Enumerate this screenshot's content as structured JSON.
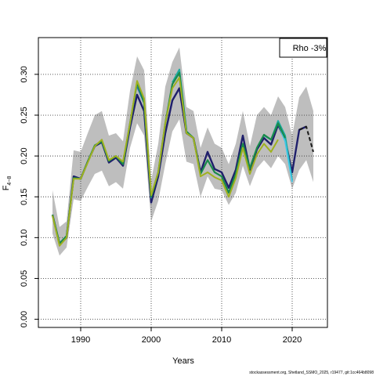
{
  "chart_data": {
    "type": "line",
    "xlabel": "Years",
    "ylabel": "F",
    "ylabel_subscript": "4−8",
    "xlim": [
      1984,
      2025
    ],
    "ylim": [
      -0.01,
      0.345
    ],
    "xticks": [
      1990,
      2000,
      2010,
      2020
    ],
    "yticks": [
      0.0,
      0.05,
      0.1,
      0.15,
      0.2,
      0.25,
      0.3
    ],
    "ytick_labels": [
      "0.00",
      "0.05",
      "0.10",
      "0.15",
      "0.20",
      "0.25",
      "0.30"
    ],
    "grid": true,
    "legend_text": "Rho -3%",
    "legend_position": "top-right",
    "band": {
      "color": "#bebebe",
      "x": [
        1986,
        1987,
        1988,
        1989,
        1990,
        1991,
        1992,
        1993,
        1994,
        1995,
        1996,
        1997,
        1998,
        1999,
        2000,
        2001,
        2002,
        2003,
        2004,
        2005,
        2006,
        2007,
        2008,
        2009,
        2010,
        2011,
        2012,
        2013,
        2014,
        2015,
        2016,
        2017,
        2018,
        2019,
        2020,
        2021,
        2022,
        2023
      ],
      "upper": [
        0.158,
        0.113,
        0.12,
        0.207,
        0.205,
        0.228,
        0.25,
        0.255,
        0.225,
        0.228,
        0.218,
        0.28,
        0.322,
        0.305,
        0.17,
        0.215,
        0.285,
        0.315,
        0.333,
        0.26,
        0.255,
        0.21,
        0.235,
        0.215,
        0.21,
        0.19,
        0.215,
        0.255,
        0.212,
        0.25,
        0.26,
        0.25,
        0.273,
        0.26,
        0.225,
        0.272,
        0.285,
        0.255
      ],
      "lower": [
        0.105,
        0.078,
        0.088,
        0.147,
        0.145,
        0.162,
        0.178,
        0.182,
        0.163,
        0.168,
        0.16,
        0.21,
        0.24,
        0.225,
        0.12,
        0.145,
        0.19,
        0.23,
        0.245,
        0.193,
        0.19,
        0.15,
        0.175,
        0.16,
        0.158,
        0.14,
        0.155,
        0.188,
        0.163,
        0.185,
        0.195,
        0.185,
        0.2,
        0.19,
        0.16,
        0.183,
        0.195,
        0.168
      ]
    },
    "series": [
      {
        "color": "#1f1f6b",
        "width": 2.4,
        "dash": "",
        "x": [
          1986,
          1987,
          1988,
          1989,
          1990,
          1991,
          1992,
          1993,
          1994,
          1995,
          1996,
          1997,
          1998,
          1999,
          2000,
          2001,
          2002,
          2003,
          2004,
          2005,
          2006,
          2007,
          2008,
          2009,
          2010,
          2011,
          2012,
          2013,
          2014,
          2015,
          2016,
          2017,
          2018,
          2019
        ],
        "values": [
          0.128,
          0.092,
          0.1,
          0.175,
          0.172,
          0.193,
          0.212,
          0.217,
          0.192,
          0.198,
          0.188,
          0.235,
          0.275,
          0.255,
          0.143,
          0.175,
          0.228,
          0.268,
          0.283,
          0.228,
          0.222,
          0.18,
          0.205,
          0.184,
          0.18,
          0.161,
          0.183,
          0.225,
          0.183,
          0.208,
          0.222,
          0.214,
          0.238,
          0.22
        ]
      },
      {
        "color": "#1f1f6b",
        "width": 2.0,
        "dash": "5,3",
        "x": [
          2002,
          2003,
          2004,
          2005
        ],
        "values": [
          0.228,
          0.268,
          0.283,
          0.228
        ]
      },
      {
        "color": "#1f1f6b",
        "width": 2.4,
        "dash": "",
        "x": [
          2019,
          2020,
          2021,
          2022
        ],
        "values": [
          0.22,
          0.18,
          0.232,
          0.236
        ]
      },
      {
        "color": "#1a1a1a",
        "width": 2.0,
        "dash": "5,3",
        "x": [
          2021,
          2022,
          2023
        ],
        "values": [
          0.232,
          0.236,
          0.205
        ]
      },
      {
        "color": "#2b6fb0",
        "width": 2.0,
        "dash": "",
        "x": [
          1998,
          1999,
          2000
        ],
        "values": [
          0.285,
          0.265,
          0.148
        ]
      },
      {
        "color": "#1ca9a0",
        "width": 2.0,
        "dash": "",
        "x": [
          2003,
          2004,
          2005
        ],
        "values": [
          0.29,
          0.306,
          0.232
        ]
      },
      {
        "color": "#1ca9a0",
        "width": 2.0,
        "dash": "",
        "x": [
          2016,
          2017,
          2018,
          2019,
          2020
        ],
        "values": [
          0.225,
          0.22,
          0.243,
          0.225,
          0.17
        ]
      },
      {
        "color": "#3ec8e8",
        "width": 1.8,
        "dash": "",
        "x": [
          2018,
          2019,
          2020
        ],
        "values": [
          0.24,
          0.218,
          0.168
        ]
      },
      {
        "color": "#1a8a4a",
        "width": 2.2,
        "dash": "",
        "x": [
          1986,
          1987,
          1988,
          1989,
          1990,
          1991,
          1992,
          1993,
          1994,
          1995,
          1996,
          1997,
          1998,
          1999,
          2000,
          2001,
          2002,
          2003,
          2004,
          2005,
          2006,
          2007,
          2008,
          2009,
          2010,
          2011,
          2012,
          2013,
          2014,
          2015,
          2016,
          2017,
          2018,
          2019
        ],
        "values": [
          0.128,
          0.093,
          0.102,
          0.173,
          0.172,
          0.193,
          0.213,
          0.218,
          0.194,
          0.2,
          0.19,
          0.24,
          0.29,
          0.265,
          0.15,
          0.18,
          0.24,
          0.288,
          0.302,
          0.23,
          0.222,
          0.178,
          0.195,
          0.18,
          0.175,
          0.155,
          0.178,
          0.215,
          0.185,
          0.21,
          0.226,
          0.22,
          0.24,
          0.222
        ]
      },
      {
        "color": "#9fb11f",
        "width": 2.0,
        "dash": "",
        "x": [
          1986,
          1987,
          1988,
          1989,
          1990,
          1991,
          1992,
          1993,
          1994,
          1995,
          1996,
          1997,
          1998,
          1999,
          2000,
          2001,
          2002,
          2003,
          2004,
          2005,
          2006,
          2007,
          2008,
          2009,
          2010,
          2011,
          2012,
          2013,
          2014,
          2015,
          2016,
          2017,
          2018
        ],
        "values": [
          0.127,
          0.09,
          0.1,
          0.172,
          0.172,
          0.192,
          0.212,
          0.22,
          0.195,
          0.2,
          0.193,
          0.24,
          0.292,
          0.27,
          0.152,
          0.18,
          0.24,
          0.283,
          0.296,
          0.228,
          0.222,
          0.175,
          0.18,
          0.174,
          0.17,
          0.15,
          0.173,
          0.21,
          0.178,
          0.202,
          0.215,
          0.205,
          0.22
        ]
      }
    ]
  },
  "footer_text": "stockassessment.org, Shetland_SSMO_2025, r19477, git:1cc464b8098"
}
